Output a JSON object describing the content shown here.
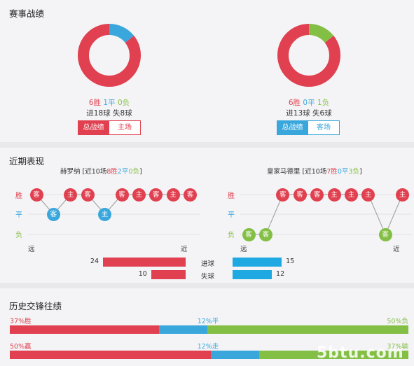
{
  "colors": {
    "win": "#e0404f",
    "draw": "#3aa7dc",
    "loss": "#84bf45",
    "gray": "#c8c8c8"
  },
  "record": {
    "title": "赛事战绩",
    "home": {
      "wins": 6,
      "draws": 1,
      "losses": 0,
      "win_text": "6胜",
      "draw_text": "1平",
      "loss_text": "0负",
      "goals_text": "进18球",
      "conceded_text": "失8球",
      "tab_total": "总战绩",
      "tab_venue": "主场"
    },
    "away": {
      "wins": 6,
      "draws": 0,
      "losses": 1,
      "win_text": "6胜",
      "draw_text": "0平",
      "loss_text": "1负",
      "goals_text": "进13球",
      "conceded_text": "失6球",
      "tab_total": "总战绩",
      "tab_venue": "客场"
    }
  },
  "recent": {
    "title": "近期表现",
    "row_labels": {
      "win": "胜",
      "draw": "平",
      "loss": "负"
    },
    "far_label": "远",
    "near_label": "近",
    "home": {
      "team": "赫罗纳",
      "open": " [近10场",
      "w": "8胜",
      "d": "2平",
      "l": "0负",
      "close": "]",
      "results": [
        "win",
        "draw",
        "win",
        "win",
        "draw",
        "win",
        "win",
        "win",
        "win",
        "win"
      ],
      "venues": [
        "客",
        "客",
        "主",
        "客",
        "主",
        "客",
        "主",
        "客",
        "主",
        "客"
      ]
    },
    "away": {
      "team": "皇家马德里",
      "open": " [近10场",
      "w": "7胜",
      "d": "0平",
      "l": "3负",
      "close": "]",
      "results": [
        "loss",
        "loss",
        "win",
        "win",
        "win",
        "win",
        "win",
        "win",
        "loss",
        "win"
      ],
      "venues": [
        "客",
        "客",
        "客",
        "客",
        "客",
        "主",
        "主",
        "主",
        "客",
        "主"
      ]
    },
    "stats": {
      "goals_label": "进球",
      "conceded_label": "失球",
      "home_goals": 24,
      "home_conceded": 10,
      "away_goals": 15,
      "away_conceded": 12
    }
  },
  "history": {
    "title": "历史交锋往绩",
    "row1": {
      "left": "37%胜",
      "mid": "12%平",
      "right": "50%负",
      "win": 37,
      "draw": 12,
      "loss": 50
    },
    "row2": {
      "left": "50%赢",
      "mid": "12%走",
      "right": "37%输",
      "win": 50,
      "draw": 12,
      "loss": 37
    }
  },
  "watermark": "5btu.com"
}
